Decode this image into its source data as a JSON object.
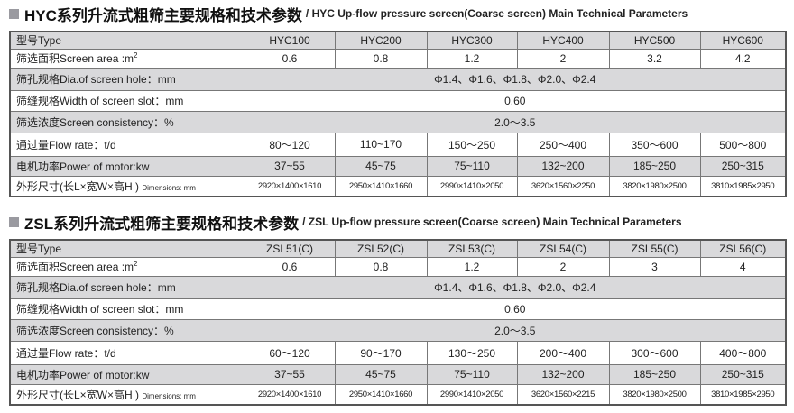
{
  "tables": [
    {
      "title_cn": "HYC系列升流式粗筛主要规格和技术参数",
      "title_en": "/ HYC Up-flow pressure screen(Coarse screen) Main Technical Parameters",
      "rows": [
        {
          "label": "型号Type",
          "values": [
            "HYC100",
            "HYC200",
            "HYC300",
            "HYC400",
            "HYC500",
            "HYC600"
          ]
        },
        {
          "label": "筛选面积Screen area :m",
          "sup": "2",
          "values": [
            "0.6",
            "0.8",
            "1.2",
            "2",
            "3.2",
            "4.2"
          ]
        },
        {
          "label": "筛孔规格Dia.of screen hole：mm",
          "merged": "Φ1.4、Φ1.6、Φ1.8、Φ2.0、Φ2.4"
        },
        {
          "label": "筛缝规格Width of screen slot：mm",
          "merged": "0.60"
        },
        {
          "label": "筛选浓度Screen consistency：%",
          "merged": "2.0～3.5"
        },
        {
          "label": "通过量Flow rate：t/d",
          "values": [
            "80～120",
            "110~170",
            "150～250",
            "250～400",
            "350～600",
            "500～800"
          ]
        },
        {
          "label": "电机功率Power of motor:kw",
          "values": [
            "37~55",
            "45~75",
            "75~110",
            "132~200",
            "185~250",
            "250~315"
          ]
        },
        {
          "label": "外形尺寸(长L×宽W×高H )",
          "tag": "Dimensions: mm",
          "small": true,
          "values": [
            "2920×1400×1610",
            "2950×1410×1660",
            "2990×1410×2050",
            "3620×1560×2250",
            "3820×1980×2500",
            "3810×1985×2950"
          ]
        }
      ]
    },
    {
      "title_cn": "ZSL系列升流式粗筛主要规格和技术参数",
      "title_en": "/ ZSL Up-flow pressure screen(Coarse screen) Main Technical Parameters",
      "rows": [
        {
          "label": "型号Type",
          "values": [
            "ZSL51(C)",
            "ZSL52(C)",
            "ZSL53(C)",
            "ZSL54(C)",
            "ZSL55(C)",
            "ZSL56(C)"
          ]
        },
        {
          "label": "筛选面积Screen area :m",
          "sup": "2",
          "values": [
            "0.6",
            "0.8",
            "1.2",
            "2",
            "3",
            "4"
          ]
        },
        {
          "label": "筛孔规格Dia.of screen hole：mm",
          "merged": "Φ1.4、Φ1.6、Φ1.8、Φ2.0、Φ2.4"
        },
        {
          "label": "筛缝规格Width of screen slot：mm",
          "merged": "0.60"
        },
        {
          "label": "筛选浓度Screen consistency：%",
          "merged": "2.0～3.5"
        },
        {
          "label": "通过量Flow rate：t/d",
          "values": [
            "60～120",
            "90～170",
            "130～250",
            "200～400",
            "300～600",
            "400～800"
          ]
        },
        {
          "label": "电机功率Power of motor:kw",
          "values": [
            "37~55",
            "45~75",
            "75~110",
            "132~200",
            "185~250",
            "250~315"
          ]
        },
        {
          "label": "外形尺寸(长L×宽W×高H )",
          "tag": "Dimensions: mm",
          "small": true,
          "values": [
            "2920×1400×1610",
            "2950×1410×1660",
            "2990×1410×2050",
            "3620×1560×2215",
            "3820×1980×2500",
            "3810×1985×2950"
          ]
        }
      ]
    }
  ]
}
